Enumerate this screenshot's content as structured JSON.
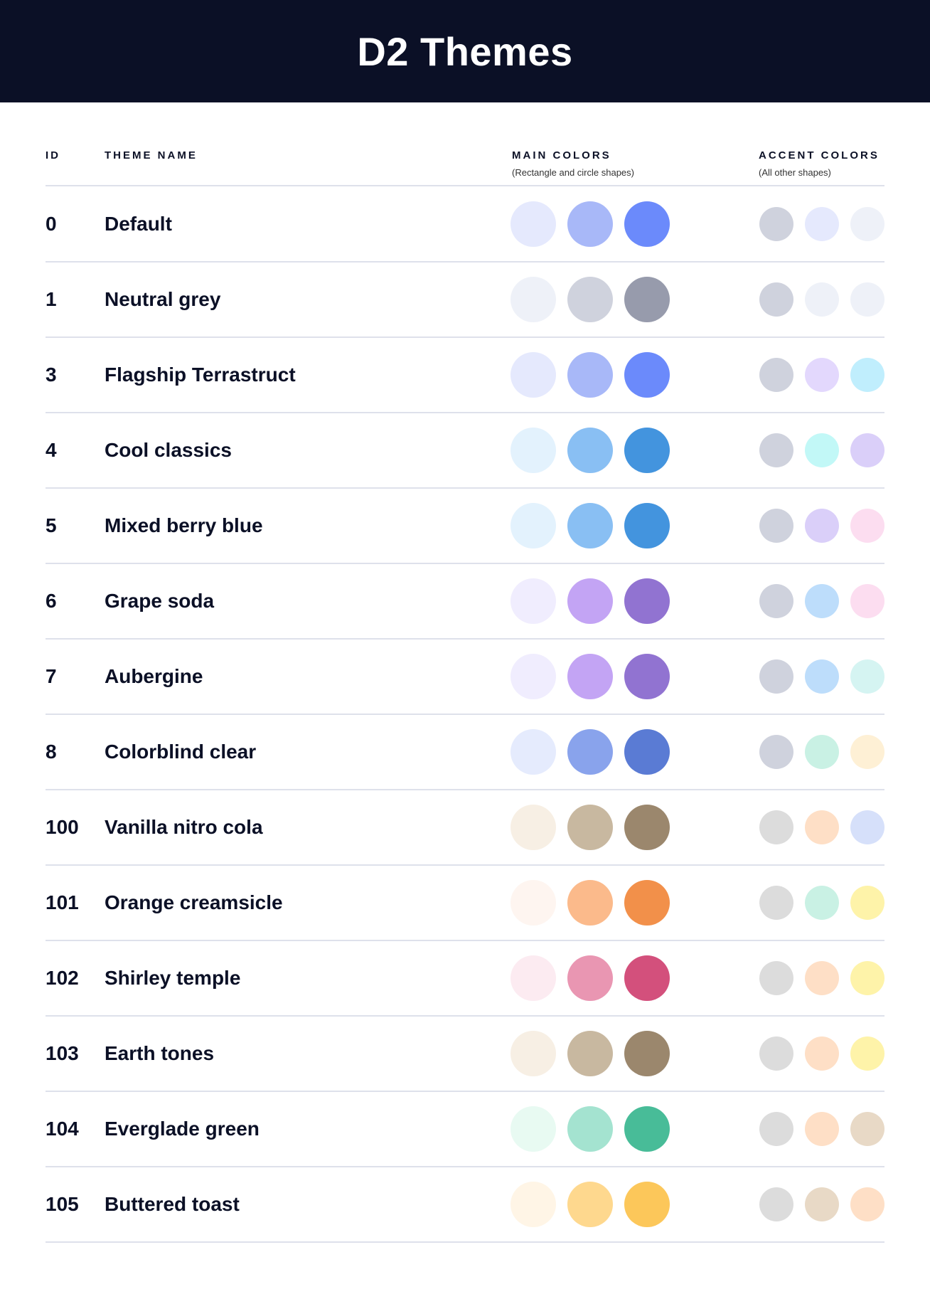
{
  "title": "D2 Themes",
  "columns": {
    "id": "ID",
    "name": "THEME NAME",
    "main": "MAIN COLORS",
    "main_sub": "(Rectangle and circle shapes)",
    "accent": "ACCENT COLORS",
    "accent_sub": "(All other shapes)"
  },
  "themes": [
    {
      "id": "0",
      "name": "Default",
      "main": [
        "#E5E9FD",
        "#A8B8F8",
        "#6B8AFB"
      ],
      "accent": [
        "#CFD2DD",
        "#E5E9FD",
        "#EEF1F8"
      ]
    },
    {
      "id": "1",
      "name": "Neutral grey",
      "main": [
        "#EEF1F8",
        "#CFD2DD",
        "#979BAC"
      ],
      "accent": [
        "#CFD2DD",
        "#EEF1F8",
        "#EEF1F8"
      ]
    },
    {
      "id": "3",
      "name": "Flagship Terrastruct",
      "main": [
        "#E5E9FD",
        "#A8B8F8",
        "#6B8AFB"
      ],
      "accent": [
        "#CFD2DD",
        "#E3D8FD",
        "#C0EEFD"
      ]
    },
    {
      "id": "4",
      "name": "Cool classics",
      "main": [
        "#E3F2FD",
        "#89BFF3",
        "#4394DE"
      ],
      "accent": [
        "#CFD2DD",
        "#C2F8F7",
        "#DACFF9"
      ]
    },
    {
      "id": "5",
      "name": "Mixed berry blue",
      "main": [
        "#E3F2FD",
        "#89BFF3",
        "#4394DE"
      ],
      "accent": [
        "#CFD2DD",
        "#DACFF9",
        "#FCDDF0"
      ]
    },
    {
      "id": "6",
      "name": "Grape soda",
      "main": [
        "#F0EDFE",
        "#C3A4F4",
        "#9173D1"
      ],
      "accent": [
        "#CFD2DD",
        "#BDDDFB",
        "#FCDDF0"
      ]
    },
    {
      "id": "7",
      "name": "Aubergine",
      "main": [
        "#F0EDFE",
        "#C3A4F4",
        "#9173D1"
      ],
      "accent": [
        "#CFD2DD",
        "#BDDDFB",
        "#D5F4F2"
      ]
    },
    {
      "id": "8",
      "name": "Colorblind clear",
      "main": [
        "#E5EBFD",
        "#89A3EC",
        "#5A7BD4"
      ],
      "accent": [
        "#CFD2DD",
        "#C9F1E4",
        "#FEF0D5"
      ]
    },
    {
      "id": "100",
      "name": "Vanilla nitro cola",
      "main": [
        "#F7EFE4",
        "#C8B8A0",
        "#9B876D"
      ],
      "accent": [
        "#DCDCDC",
        "#FEDFC6",
        "#D6E0FA"
      ]
    },
    {
      "id": "101",
      "name": "Orange creamsicle",
      "main": [
        "#FEF5F0",
        "#FBBA8B",
        "#F2904A"
      ],
      "accent": [
        "#DCDCDC",
        "#C9F1E4",
        "#FEF3A9"
      ]
    },
    {
      "id": "102",
      "name": "Shirley temple",
      "main": [
        "#FCEBF1",
        "#E996B2",
        "#D3507C"
      ],
      "accent": [
        "#DCDCDC",
        "#FEDFC6",
        "#FEF3A9"
      ]
    },
    {
      "id": "103",
      "name": "Earth tones",
      "main": [
        "#F7EFE4",
        "#C8B8A0",
        "#9B876D"
      ],
      "accent": [
        "#DCDCDC",
        "#FEDFC6",
        "#FEF3A9"
      ]
    },
    {
      "id": "104",
      "name": "Everglade green",
      "main": [
        "#E8FAF2",
        "#A4E3D0",
        "#48BC98"
      ],
      "accent": [
        "#DCDCDC",
        "#FEDFC6",
        "#E8D9C6"
      ]
    },
    {
      "id": "105",
      "name": "Buttered toast",
      "main": [
        "#FFF5E6",
        "#FED88E",
        "#FCC75A"
      ],
      "accent": [
        "#DCDCDC",
        "#E8D9C6",
        "#FEDFC6"
      ]
    }
  ]
}
